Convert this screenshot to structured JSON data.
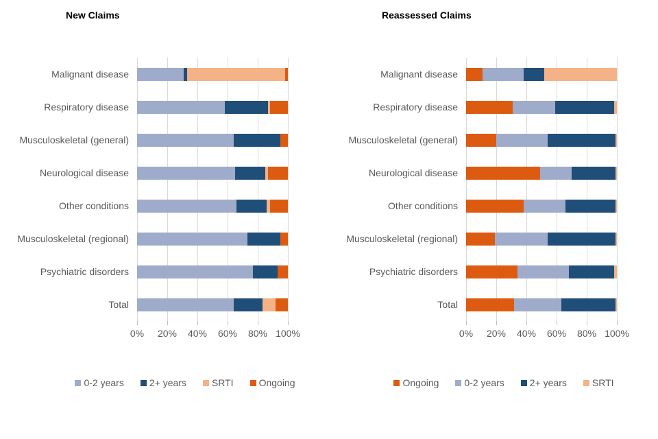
{
  "colors": {
    "blue_light": "#9FABCB",
    "blue_dark": "#1F4E79",
    "peach": "#F5B286",
    "orange": "#DC5B10",
    "gridline": "#D9D9D9",
    "tick": "#BFBFBF",
    "axis_text": "#595959",
    "title_text": "#000000"
  },
  "chart_data": [
    {
      "type": "bar",
      "orientation": "horizontal",
      "stacked": true,
      "title": "New Claims",
      "categories": [
        "Malignant disease",
        "Respiratory disease",
        "Musculoskeletal (general)",
        "Neurological disease",
        "Other conditions",
        "Musculoskeletal (regional)",
        "Psychiatric disorders",
        "Total"
      ],
      "series": [
        {
          "name": "0-2 years",
          "color_key": "blue_light",
          "values": [
            31,
            58,
            64,
            65,
            66,
            73,
            77,
            64
          ]
        },
        {
          "name": "2+ years",
          "color_key": "blue_dark",
          "values": [
            2,
            29,
            31,
            20,
            20,
            22,
            16,
            19
          ]
        },
        {
          "name": "SRTI",
          "color_key": "peach",
          "values": [
            65,
            1,
            0,
            2,
            2,
            0,
            0,
            9
          ]
        },
        {
          "name": "Ongoing",
          "color_key": "orange",
          "values": [
            2,
            12,
            5,
            13,
            12,
            5,
            7,
            8
          ]
        }
      ],
      "xlim": [
        0,
        100
      ],
      "x_tick_labels": [
        "0%",
        "20%",
        "40%",
        "60%",
        "80%",
        "100%"
      ],
      "grid": "vertical",
      "legend_position": "bottom",
      "legend": [
        "0-2 years",
        "2+ years",
        "SRTI",
        "Ongoing"
      ]
    },
    {
      "type": "bar",
      "orientation": "horizontal",
      "stacked": true,
      "title": "Reassessed Claims",
      "categories": [
        "Malignant disease",
        "Respiratory disease",
        "Musculoskeletal (general)",
        "Neurological disease",
        "Other conditions",
        "Musculoskeletal (regional)",
        "Psychiatric disorders",
        "Total"
      ],
      "series": [
        {
          "name": "Ongoing",
          "color_key": "orange",
          "values": [
            11,
            31,
            20,
            49,
            38,
            19,
            34,
            32
          ]
        },
        {
          "name": "0-2 years",
          "color_key": "blue_light",
          "values": [
            27,
            28,
            34,
            21,
            28,
            35,
            34,
            31
          ]
        },
        {
          "name": "2+ years",
          "color_key": "blue_dark",
          "values": [
            14,
            39,
            45,
            29,
            33,
            45,
            30,
            36
          ]
        },
        {
          "name": "SRTI",
          "color_key": "peach",
          "values": [
            48,
            2,
            1,
            1,
            1,
            1,
            2,
            1
          ]
        }
      ],
      "xlim": [
        0,
        100
      ],
      "x_tick_labels": [
        "0%",
        "20%",
        "40%",
        "60%",
        "80%",
        "100%"
      ],
      "grid": "vertical",
      "legend_position": "bottom",
      "legend": [
        "Ongoing",
        "0-2 years",
        "2+ years",
        "SRTI"
      ]
    }
  ]
}
